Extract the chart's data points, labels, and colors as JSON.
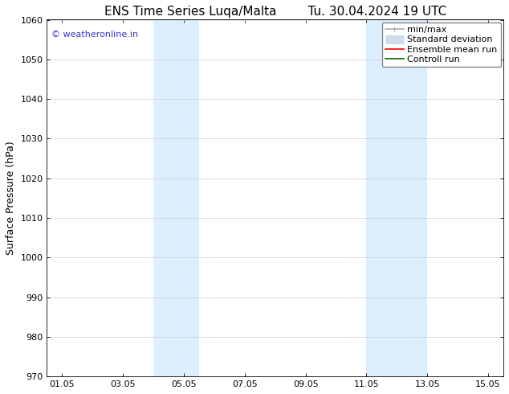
{
  "title_left": "ENS Time Series Luqa/Malta",
  "title_right": "Tu. 30.04.2024 19 UTC",
  "ylabel": "Surface Pressure (hPa)",
  "ylim": [
    970,
    1060
  ],
  "yticks": [
    970,
    980,
    990,
    1000,
    1010,
    1020,
    1030,
    1040,
    1050,
    1060
  ],
  "xlim_start": 0.5,
  "xlim_end": 15.5,
  "xticks": [
    1,
    3,
    5,
    7,
    9,
    11,
    13,
    15
  ],
  "xticklabels": [
    "01.05",
    "03.05",
    "05.05",
    "07.05",
    "09.05",
    "11.05",
    "13.05",
    "15.05"
  ],
  "shaded_bands": [
    {
      "x_start": 4.0,
      "x_end": 5.5
    },
    {
      "x_start": 11.0,
      "x_end": 13.0
    }
  ],
  "shade_color": "#ddeeff",
  "watermark_text": "© weatheronline.in",
  "watermark_color": "#3333cc",
  "background_color": "#ffffff",
  "grid_color": "#cccccc",
  "legend_items": [
    {
      "label": "min/max",
      "color": "#aaaaaa",
      "lw": 1.2
    },
    {
      "label": "Standard deviation",
      "color": "#ccddee",
      "lw": 8
    },
    {
      "label": "Ensemble mean run",
      "color": "#ff0000",
      "lw": 1.2
    },
    {
      "label": "Controll run",
      "color": "#006600",
      "lw": 1.2
    }
  ],
  "title_fontsize": 11,
  "axis_fontsize": 9,
  "tick_fontsize": 8,
  "legend_fontsize": 8,
  "watermark_fontsize": 8
}
